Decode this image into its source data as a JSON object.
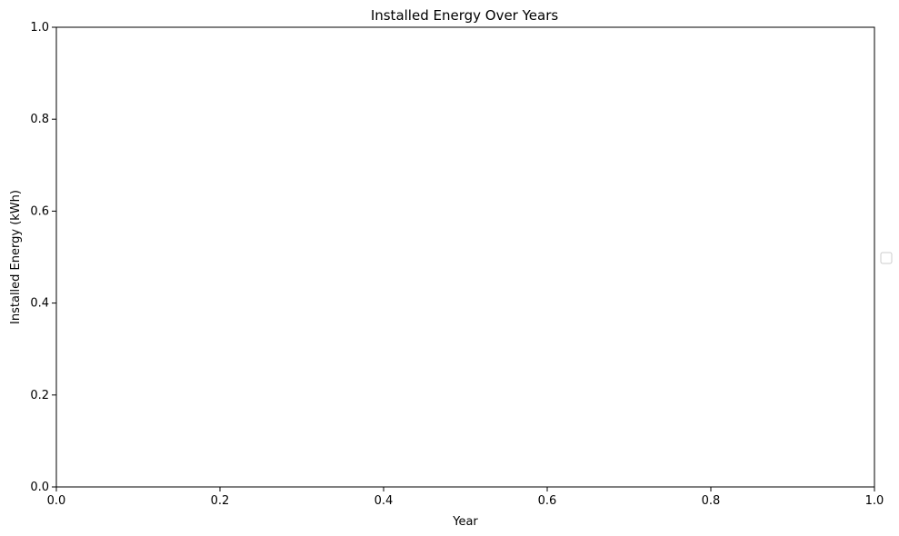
{
  "chart_data": {
    "type": "line",
    "title": "Installed Energy Over Years",
    "xlabel": "Year",
    "ylabel": "Installed Energy (kWh)",
    "xlim": [
      0.0,
      1.0
    ],
    "ylim": [
      0.0,
      1.0
    ],
    "x_ticks": [
      "0.0",
      "0.2",
      "0.4",
      "0.6",
      "0.8",
      "1.0"
    ],
    "y_ticks": [
      "0.0",
      "0.2",
      "0.4",
      "0.6",
      "0.8",
      "1.0"
    ],
    "series": [],
    "grid": false,
    "legend": {
      "placement": "center-right-outside",
      "entries": []
    }
  }
}
